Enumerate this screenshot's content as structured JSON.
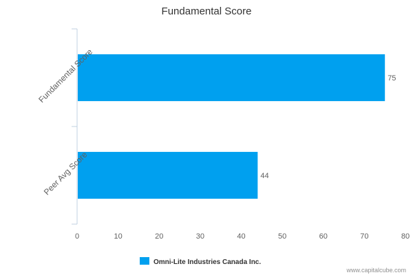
{
  "chart_data": {
    "type": "bar",
    "orientation": "horizontal",
    "title": "Fundamental Score",
    "categories": [
      "Fundamental Score",
      "Peer Avg Score"
    ],
    "series": [
      {
        "name": "Omni-Lite Industries Canada Inc.",
        "values": [
          75,
          44
        ]
      }
    ],
    "xlim": [
      0,
      80
    ],
    "xticks": [
      0,
      10,
      20,
      30,
      40,
      50,
      60,
      70,
      80
    ],
    "grid": false,
    "legend_position": "bottom-center",
    "bar_color": "#00a0ef"
  },
  "credit": "www.capitalcube.com"
}
